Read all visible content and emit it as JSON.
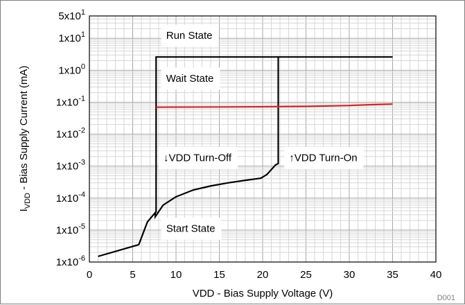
{
  "chart_data": {
    "type": "line",
    "title": "",
    "xlabel": "VDD - Bias Supply Voltage (V)",
    "ylabel_main": "I",
    "ylabel_sub": "VDD",
    "ylabel_rest": " - Bias Supply Current (mA)",
    "xlim": [
      0,
      40
    ],
    "ylim": [
      1e-06,
      50
    ],
    "yscale": "log",
    "grid": true,
    "x_ticks": [
      0,
      5,
      10,
      15,
      20,
      25,
      30,
      35,
      40
    ],
    "y_ticks": [
      {
        "value": 1e-06,
        "mant": "1x10",
        "exp": "-6"
      },
      {
        "value": 1e-05,
        "mant": "1x10",
        "exp": "-5"
      },
      {
        "value": 0.0001,
        "mant": "1x10",
        "exp": "-4"
      },
      {
        "value": 0.001,
        "mant": "1x10",
        "exp": "-3"
      },
      {
        "value": 0.01,
        "mant": "1x10",
        "exp": "-2"
      },
      {
        "value": 0.1,
        "mant": "1x10",
        "exp": "-1"
      },
      {
        "value": 1,
        "mant": "1x10",
        "exp": "0"
      },
      {
        "value": 10,
        "mant": "1x10",
        "exp": "1"
      },
      {
        "value": 50,
        "mant": "5x10",
        "exp": "1"
      }
    ],
    "series": [
      {
        "color": "#000000",
        "x": [
          1,
          5.7,
          6.7,
          7.6,
          7.6,
          8.5,
          10,
          12,
          14,
          16,
          18,
          19.8,
          20.5,
          21.5,
          21.8,
          21.8,
          35
        ],
        "y": [
          1.5e-06,
          3.5e-06,
          1.8e-05,
          3.5e-05,
          2.6e-05,
          6e-05,
          0.00011,
          0.00018,
          0.00024,
          0.0003,
          0.00036,
          0.00042,
          0.00055,
          0.0011,
          0.0012,
          2.6,
          2.6
        ]
      },
      {
        "color": "#000000",
        "x": [
          7.7,
          7.7,
          21.8
        ],
        "y": [
          3.5e-05,
          2.6,
          2.6
        ]
      },
      {
        "color": "#e02020",
        "x": [
          7.7,
          15,
          20,
          25,
          30,
          35
        ],
        "y": [
          0.07,
          0.071,
          0.072,
          0.074,
          0.079,
          0.088
        ]
      }
    ],
    "annotations": [
      {
        "text": "Run State",
        "x": 8.3,
        "y": 12
      },
      {
        "text": "Wait State",
        "x": 8.3,
        "y": 0.55
      },
      {
        "text": "↓VDD Turn-Off",
        "x": 8.0,
        "y": 0.0018
      },
      {
        "text": "↑VDD Turn-On",
        "x": 22.5,
        "y": 0.0018
      },
      {
        "text": "Start State",
        "x": 8.3,
        "y": 1.1e-05
      }
    ],
    "figure_ref": "D001"
  }
}
